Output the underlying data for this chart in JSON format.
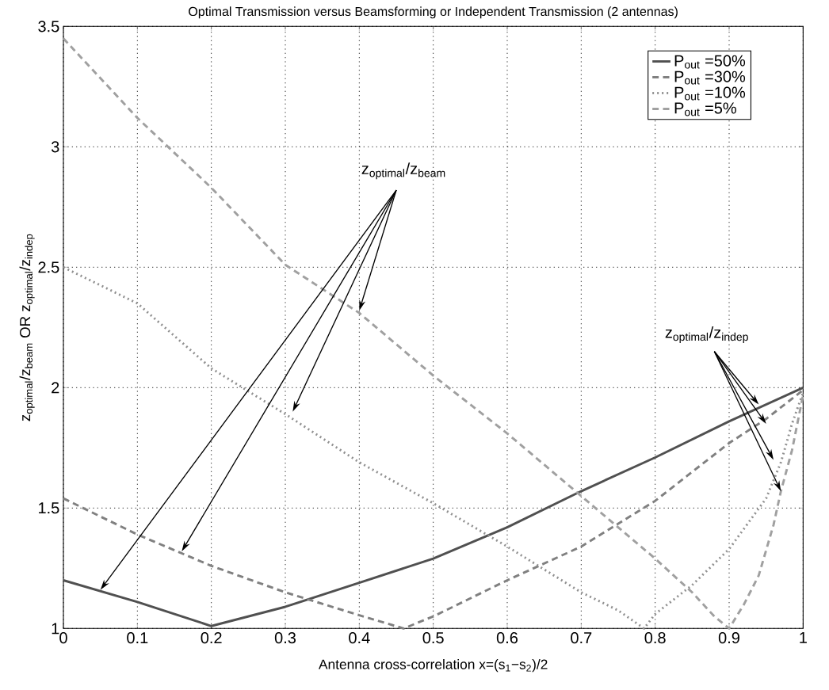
{
  "chart_data": {
    "type": "line",
    "title": "Optimal Transmission versus Beamsforming or Independent Transmission (2 antennas)",
    "xlabel": "Antenna cross-correlation x=(s$_{1}$−s$_{2}$)/2",
    "ylabel": "z$_{optimal}$/z$_{beam}$     OR z$_{optimal}$/z$_{indep}$",
    "xlim": [
      0,
      1
    ],
    "ylim": [
      1,
      3.5
    ],
    "xticks": [
      0,
      0.1,
      0.2,
      0.3,
      0.4,
      0.5,
      0.6,
      0.7,
      0.8,
      0.9,
      1
    ],
    "yticks": [
      1,
      1.5,
      2,
      2.5,
      3,
      3.5
    ],
    "grid": true,
    "legend": "top right",
    "annotations": [
      {
        "text": "z$_{optimal}$/z$_{beam}$",
        "x": 0.4,
        "y": 2.32
      },
      {
        "text": "z$_{optimal}$/z$_{indep}$",
        "x": 0.94,
        "y": 1.93
      }
    ],
    "series": [
      {
        "name": "P$_{out}$ =50%",
        "color": "#505050",
        "line_style": "solid",
        "x": [
          0,
          0.1,
          0.2,
          0.3,
          0.4,
          0.5,
          0.6,
          0.7,
          0.8,
          0.9,
          1
        ],
        "values": [
          1.2,
          1.11,
          1.01,
          1.09,
          1.19,
          1.29,
          1.42,
          1.57,
          1.71,
          1.86,
          2.0
        ]
      },
      {
        "name": "P$_{out}$ =30%",
        "color": "#808080",
        "line_style": "dashed",
        "x": [
          0,
          0.1,
          0.2,
          0.3,
          0.4,
          0.46,
          0.5,
          0.6,
          0.7,
          0.8,
          0.9,
          0.95,
          1
        ],
        "values": [
          1.54,
          1.39,
          1.26,
          1.15,
          1.055,
          1.0,
          1.05,
          1.2,
          1.34,
          1.53,
          1.77,
          1.87,
          1.99
        ]
      },
      {
        "name": "P$_{out}$ =10%",
        "color": "#909090",
        "line_style": "dotted",
        "x": [
          0,
          0.1,
          0.2,
          0.3,
          0.4,
          0.5,
          0.6,
          0.7,
          0.75,
          0.785,
          0.8,
          0.85,
          0.9,
          0.95,
          0.97,
          0.985,
          1
        ],
        "values": [
          2.5,
          2.35,
          2.08,
          1.89,
          1.69,
          1.52,
          1.34,
          1.15,
          1.075,
          1.0,
          1.06,
          1.18,
          1.33,
          1.54,
          1.69,
          1.85,
          1.98
        ]
      },
      {
        "name": "P$_{out}$ =5%",
        "color": "#a0a0a0",
        "line_style": "dashed",
        "x": [
          0,
          0.1,
          0.2,
          0.3,
          0.4,
          0.5,
          0.6,
          0.7,
          0.8,
          0.85,
          0.88,
          0.9,
          0.92,
          0.94,
          0.96,
          0.97,
          0.985,
          1
        ],
        "values": [
          3.45,
          3.12,
          2.83,
          2.51,
          2.31,
          2.05,
          1.81,
          1.55,
          1.29,
          1.15,
          1.05,
          1.0,
          1.1,
          1.22,
          1.43,
          1.57,
          1.74,
          1.97
        ]
      }
    ]
  }
}
